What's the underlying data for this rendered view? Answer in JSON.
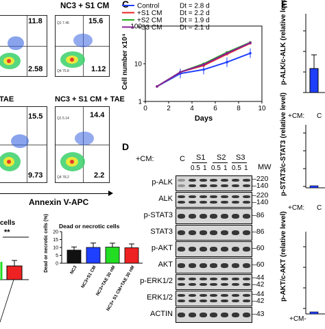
{
  "flow": {
    "panels": [
      {
        "id": "p1",
        "title": "",
        "q_top_right": "11.8",
        "q_bottom_right": "2.58",
        "q1": "",
        "q4": ""
      },
      {
        "id": "p2",
        "title": "NC3 + S1 CM",
        "q_top_right": "15.6",
        "q_bottom_right": "1.12",
        "q1": "Q1 7.46",
        "q4": "Q4 75.8"
      },
      {
        "id": "p3",
        "title": "TAE",
        "q_top_right": "15.5",
        "q_bottom_right": "9.73",
        "q1": "",
        "q4": ""
      },
      {
        "id": "p4",
        "title": "NC3 + S1 CM + TAE",
        "q_top_right": "14.4",
        "q_bottom_right": "2.2",
        "q1": "Q1 5.14",
        "q4": "Q4 78.2"
      }
    ],
    "x_axis_label": "Annexin V-APC"
  },
  "left_bar": {
    "title": "cells",
    "sig": "**"
  },
  "dead_bar": {
    "title": "Dead or necrotic cells",
    "ylabel": "Dead or necrotic cells (%)",
    "yticks": [
      "0",
      "5",
      "10",
      "15",
      "20"
    ],
    "categories": [
      "NC3",
      "NC3+S1 CM",
      "NC3+TAE 30 nM",
      "NC3+ S1 CM+TAE 30 nM"
    ],
    "colors": [
      "#111111",
      "#1f3fff",
      "#22dd22",
      "#ee2222"
    ]
  },
  "panel_c": {
    "letter": "C",
    "legend": [
      {
        "name": "Control",
        "dt": "Dt = 2.8 d",
        "color": "#1f3fff"
      },
      {
        "name": "+S1 CM",
        "dt": "Dt = 2.2 d",
        "color": "#ee2222"
      },
      {
        "name": "+S2 CM",
        "dt": "Dt = 1.9 d",
        "color": "#22aa22"
      },
      {
        "name": "+S3 CM",
        "dt": "Dt = 2.1 d",
        "color": "#882299"
      }
    ],
    "ylabel": "Cell number x10⁴",
    "xlabel": "Days",
    "xticks": [
      "0",
      "2",
      "4",
      "6",
      "8",
      "10"
    ],
    "yticks": [
      "1",
      "10",
      "100"
    ]
  },
  "chart_data": {
    "type": "line",
    "title": "",
    "xlabel": "Days",
    "ylabel": "Cell number x10⁴",
    "y_scale": "log",
    "xlim": [
      0,
      10
    ],
    "ylim": [
      1,
      100
    ],
    "x": [
      1,
      3,
      5,
      7,
      9
    ],
    "series": [
      {
        "name": "Control",
        "values": [
          2.5,
          5.5,
          7,
          11,
          19
        ],
        "color": "#1f3fff"
      },
      {
        "name": "+S1 CM",
        "values": [
          2.5,
          6,
          9,
          18,
          35
        ],
        "color": "#ee2222"
      },
      {
        "name": "+S2 CM",
        "values": [
          2.5,
          6,
          10,
          20,
          37
        ],
        "color": "#22aa22"
      },
      {
        "name": "+S3 CM",
        "values": [
          2.5,
          6,
          9.5,
          19,
          36
        ],
        "color": "#882299"
      }
    ],
    "legend": "top-left"
  },
  "panel_d": {
    "letter": "D",
    "cm_label": "+CM:",
    "lane_header": {
      "c": "C",
      "s1": "S1",
      "s2": "S2",
      "s3": "S3",
      "doses": [
        "0.5",
        "1",
        "0.5",
        "1",
        "0.5",
        "1"
      ]
    },
    "mw_label": "MW",
    "rows": [
      {
        "label": "p-ALK",
        "mw": [
          "220",
          "140"
        ]
      },
      {
        "label": "ALK",
        "mw": [
          "220",
          "140"
        ]
      },
      {
        "label": "p-STAT3",
        "mw": [
          "86"
        ]
      },
      {
        "label": "STAT3",
        "mw": [
          "86"
        ]
      },
      {
        "label": "p-AKT",
        "mw": [
          "60"
        ]
      },
      {
        "label": "AKT",
        "mw": [
          "60"
        ]
      },
      {
        "label": "p-ERK1/2",
        "mw": [
          "44",
          "42"
        ]
      },
      {
        "label": "ERK1/2",
        "mw": [
          "44",
          "42"
        ]
      },
      {
        "label": "ACTIN",
        "mw": [
          "43"
        ]
      }
    ]
  },
  "panel_e": {
    "letter": "E",
    "charts": [
      {
        "ylabel": "p-ALK/c-ALK (relative level)",
        "cm": "+CM:",
        "cm_value": "C"
      },
      {
        "ylabel": "p-STAT3/c-STAT3 (relative level)",
        "cm": "+CM:",
        "cm_value": "C"
      },
      {
        "ylabel": "p-AKT/c-AKT (relative level)",
        "cm": "+CM-",
        "cm_value": ""
      }
    ]
  }
}
